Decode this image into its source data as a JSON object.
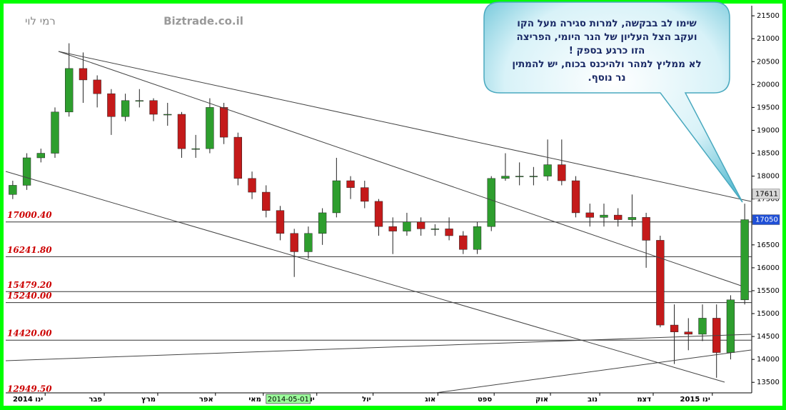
{
  "chart_data": {
    "type": "candlestick",
    "author": "רמי לוי",
    "site": "Biztrade.co.il",
    "note": [
      "שימו לב  בבקשה,  למרות סגירה  מעל הקו",
      "ועקב הצל העליון  של הנר היומי, הפריצה",
      "הזו  כרגע  בספק !",
      "לא ממליץ למהר ולהיכנס בכוח, יש להמתין",
      "נר  נוסף."
    ],
    "cursor_date": "2014-05-01",
    "up_color": "#2e9e2e",
    "down_color": "#c41a1a",
    "open": [
      17600,
      17800,
      18400,
      18500,
      19400,
      20350,
      20100,
      19800,
      19300,
      19650,
      19650,
      19350,
      19350,
      18600,
      18600,
      19500,
      18850,
      17950,
      17650,
      17250,
      16750,
      16350,
      16750,
      17200,
      17900,
      17750,
      17450,
      16900,
      16800,
      17000,
      16850,
      16850,
      16700,
      16400,
      16900,
      17950,
      18000,
      18000,
      18000,
      18250,
      17900,
      17200,
      17100,
      17150,
      17050,
      17100,
      16600,
      14750,
      14600,
      14550,
      14900,
      14150,
      15300
    ],
    "high": [
      17900,
      18500,
      18600,
      19500,
      20900,
      20700,
      20200,
      19900,
      19800,
      19900,
      19700,
      19600,
      19400,
      18900,
      19700,
      19600,
      18950,
      18100,
      17800,
      17350,
      16850,
      16900,
      17300,
      18400,
      18000,
      17900,
      17500,
      17100,
      17200,
      17100,
      16950,
      17100,
      16800,
      17000,
      18000,
      18500,
      18300,
      18200,
      18800,
      18800,
      18000,
      17400,
      17400,
      17300,
      17600,
      17200,
      16700,
      15200,
      14900,
      15200,
      15200,
      15400,
      17400
    ],
    "low": [
      17500,
      17700,
      18300,
      18400,
      19300,
      19600,
      19500,
      18900,
      19200,
      19500,
      19200,
      19100,
      18400,
      18400,
      18500,
      18700,
      17800,
      17500,
      17100,
      16600,
      15800,
      16200,
      16500,
      17100,
      17500,
      17300,
      16700,
      16300,
      16700,
      16700,
      16700,
      16600,
      16300,
      16300,
      16800,
      17900,
      17800,
      17800,
      17900,
      17800,
      17100,
      16900,
      16900,
      16900,
      16900,
      16000,
      14700,
      13900,
      14200,
      14400,
      13600,
      14000,
      15200
    ],
    "close": [
      17800,
      18400,
      18500,
      19400,
      20350,
      20100,
      19800,
      19300,
      19650,
      19650,
      19350,
      19350,
      18600,
      18600,
      19500,
      18850,
      17950,
      17650,
      17250,
      16750,
      16350,
      16750,
      17200,
      17900,
      17750,
      17450,
      16900,
      16800,
      17000,
      16850,
      16850,
      16700,
      16400,
      16900,
      17950,
      18000,
      18000,
      18000,
      18250,
      17900,
      17200,
      17100,
      17150,
      17050,
      17100,
      16600,
      14750,
      14600,
      14550,
      14900,
      14150,
      15300,
      17050
    ],
    "xlim": [
      -0.5,
      52.5
    ],
    "xticks": [
      {
        "value": 2.3,
        "label": "2014 ינו"
      },
      {
        "value": 6.5,
        "label": "פבר"
      },
      {
        "value": 10.3,
        "label": "מרץ"
      },
      {
        "value": 14.4,
        "label": "אפר"
      },
      {
        "value": 17.8,
        "label": "מאי"
      },
      {
        "value": 21.6,
        "label": "יונ"
      },
      {
        "value": 25.6,
        "label": "יול"
      },
      {
        "value": 30.2,
        "label": "אוג"
      },
      {
        "value": 34.2,
        "label": "ספט"
      },
      {
        "value": 38.2,
        "label": "אוק"
      },
      {
        "value": 41.7,
        "label": "נוב"
      },
      {
        "value": 45.5,
        "label": "דצמ"
      },
      {
        "value": 49.7,
        "label": "2015 ינו"
      }
    ],
    "ylim": [
      13270,
      21720
    ],
    "yticks": [
      13500,
      14000,
      14500,
      15000,
      15500,
      16000,
      16500,
      17000,
      17500,
      18000,
      18500,
      19000,
      19500,
      20000,
      20500,
      21000,
      21500
    ],
    "levels": [
      {
        "value": 17000.4,
        "label": "17000.40"
      },
      {
        "value": 16241.8,
        "label": "16241.80"
      },
      {
        "value": 15479.2,
        "label": "15479.20"
      },
      {
        "value": 15240,
        "label": "15240.00"
      },
      {
        "value": 14420,
        "label": "14420.00"
      },
      {
        "value": 12949.5,
        "label": "12949.50"
      }
    ],
    "level_color": "#cc0000",
    "price_markers": [
      {
        "value": 17611,
        "color": "#d8d8d8"
      },
      {
        "value": 17050,
        "color": "#1f4fd6"
      }
    ]
  }
}
